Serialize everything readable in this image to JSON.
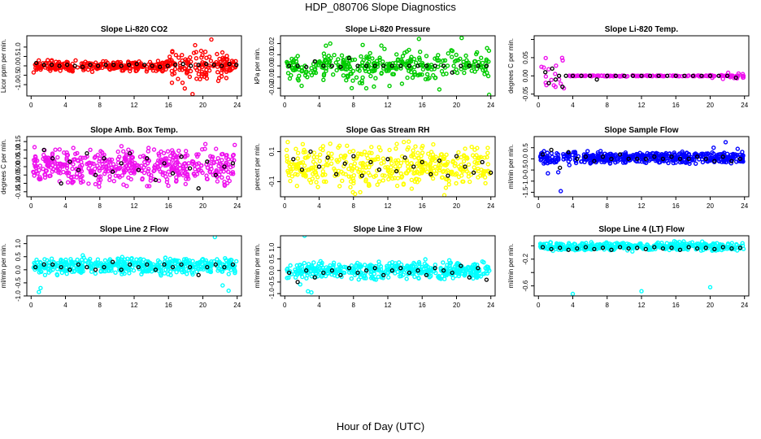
{
  "page": {
    "title": "HDP_080706  Slope Diagnostics",
    "xlabel": "Hour of Day (UTC)"
  },
  "chart_data": [
    {
      "type": "scatter",
      "title": "Slope Li-820 CO2",
      "ylabel": "Licor ppm per min.",
      "color": "#ff0000",
      "xlim": [
        -0.5,
        24.5
      ],
      "ylim": [
        -1.6,
        1.6
      ],
      "xticks": [
        0,
        4,
        8,
        12,
        16,
        20,
        24
      ],
      "yticks": [
        -1.0,
        -0.5,
        0.0,
        0.5,
        1.0
      ],
      "ytick_labels": [
        "-1.0",
        "-0.5",
        "0.0",
        "0.5",
        "1.0"
      ],
      "sigma": 0.14,
      "n": 380,
      "outliers": [
        [
          16.4,
          -0.9
        ],
        [
          17.9,
          -1.2
        ],
        [
          19.1,
          1.1
        ],
        [
          21.0,
          1.4
        ],
        [
          18.8,
          -1.5
        ],
        [
          21.8,
          -0.8
        ],
        [
          0.3,
          -0.35
        ],
        [
          20.3,
          0.75
        ]
      ],
      "black_pts": [
        [
          0.6,
          0.15
        ],
        [
          1.5,
          0.05
        ],
        [
          2.4,
          0.05
        ],
        [
          3.3,
          0.0
        ],
        [
          4.2,
          0.05
        ],
        [
          5.1,
          0.0
        ],
        [
          6.0,
          -0.05
        ],
        [
          6.9,
          0.05
        ],
        [
          7.8,
          0.0
        ],
        [
          8.7,
          0.05
        ],
        [
          9.6,
          0.05
        ],
        [
          10.5,
          0.0
        ],
        [
          11.4,
          0.05
        ],
        [
          12.3,
          0.1
        ],
        [
          13.2,
          0.05
        ],
        [
          14.1,
          0.0
        ],
        [
          15.0,
          -0.05
        ],
        [
          15.9,
          0.0
        ],
        [
          16.8,
          0.05
        ],
        [
          17.7,
          0.1
        ],
        [
          18.6,
          0.0
        ],
        [
          19.5,
          0.05
        ],
        [
          20.4,
          0.1
        ],
        [
          21.3,
          0.05
        ],
        [
          22.2,
          0.0
        ],
        [
          23.1,
          0.1
        ],
        [
          23.9,
          0.05
        ]
      ]
    },
    {
      "type": "scatter",
      "title": "Slope Li-820 Pressure",
      "ylabel": "kPa per min.",
      "color": "#00cc00",
      "xlim": [
        -0.5,
        24.5
      ],
      "ylim": [
        -0.027,
        0.027
      ],
      "xticks": [
        0,
        4,
        8,
        12,
        16,
        20,
        24
      ],
      "yticks": [
        -0.02,
        -0.01,
        0.0,
        0.01,
        0.02
      ],
      "ytick_labels": [
        "-0.02",
        "-0.01",
        "0.00",
        "0.01",
        "0.02"
      ],
      "sigma": 0.006,
      "n": 340,
      "outliers": [
        [
          7.8,
          -0.02
        ],
        [
          5.3,
          0.02
        ],
        [
          12.2,
          -0.018
        ],
        [
          16.4,
          -0.012
        ],
        [
          20.6,
          0.025
        ],
        [
          23.8,
          -0.026
        ],
        [
          1.6,
          -0.013
        ],
        [
          19.4,
          0.014
        ]
      ],
      "black_pts": [
        [
          0.5,
          0.0
        ],
        [
          1.5,
          0.0
        ],
        [
          2.5,
          -0.001
        ],
        [
          3.5,
          0.004
        ],
        [
          4.5,
          0.0
        ],
        [
          5.5,
          0.0
        ],
        [
          6.5,
          -0.001
        ],
        [
          7.5,
          0.007
        ],
        [
          8.5,
          0.0
        ],
        [
          9.5,
          0.0
        ],
        [
          10.5,
          0.0
        ],
        [
          11.5,
          0.0
        ],
        [
          12.5,
          0.0
        ],
        [
          13.5,
          0.0
        ],
        [
          14.5,
          0.0
        ],
        [
          15.5,
          0.0
        ],
        [
          16.5,
          0.0
        ],
        [
          17.5,
          0.0
        ],
        [
          18.5,
          0.0
        ],
        [
          19.5,
          -0.006
        ],
        [
          20.5,
          0.0
        ],
        [
          21.5,
          0.0
        ],
        [
          22.5,
          0.0
        ],
        [
          23.5,
          0.0
        ]
      ]
    },
    {
      "type": "scatter",
      "title": "Slope Li-820 Temp.",
      "ylabel": "degrees C per min.",
      "color": "#ee11ee",
      "xlim": [
        -0.5,
        24.5
      ],
      "ylim": [
        -0.055,
        0.11
      ],
      "xticks": [
        0,
        4,
        8,
        12,
        16,
        20,
        24
      ],
      "yticks": [
        -0.05,
        0.0,
        0.05,
        0.1
      ],
      "ytick_labels": [
        "-0.05",
        "0.00",
        "0.05",
        ""
      ],
      "sigma": 0.002,
      "n": 200,
      "outliers": [],
      "black_pts": [
        [
          0.8,
          0.01
        ],
        [
          1.2,
          -0.02
        ],
        [
          1.6,
          0.02
        ],
        [
          2.0,
          -0.01
        ],
        [
          2.4,
          0.0
        ],
        [
          2.8,
          -0.03
        ],
        [
          3.2,
          0.0
        ],
        [
          4.0,
          0.0
        ],
        [
          5.0,
          0.0
        ],
        [
          6.0,
          0.0
        ],
        [
          6.8,
          -0.01
        ],
        [
          8.0,
          0.0
        ],
        [
          9.0,
          0.0
        ],
        [
          10.0,
          0.0
        ],
        [
          11.0,
          0.0
        ],
        [
          12.0,
          0.0
        ],
        [
          13.0,
          0.0
        ],
        [
          14.0,
          0.0
        ],
        [
          15.0,
          0.0
        ],
        [
          16.0,
          0.0
        ],
        [
          17.0,
          0.0
        ],
        [
          18.0,
          0.0
        ],
        [
          19.0,
          0.0
        ],
        [
          20.0,
          0.0
        ],
        [
          21.0,
          0.0
        ],
        [
          22.0,
          0.0
        ],
        [
          23.0,
          -0.005
        ]
      ]
    },
    {
      "type": "scatter",
      "title": "Slope Amb. Box Temp.",
      "ylabel": "degrees C per min.",
      "color": "#ee11ee",
      "xlim": [
        -0.5,
        24.5
      ],
      "ylim": [
        -0.18,
        0.18
      ],
      "xticks": [
        0,
        4,
        8,
        12,
        16,
        20,
        24
      ],
      "yticks": [
        -0.15,
        -0.1,
        -0.05,
        0.0,
        0.05,
        0.1,
        0.15
      ],
      "ytick_labels": [
        "-0.15",
        "-0.10",
        "-0.05",
        "0.00",
        "0.05",
        "0.10",
        "0.15"
      ],
      "sigma": 0.05,
      "n": 480,
      "outliers": [],
      "black_pts": [
        [
          1.5,
          0.1
        ],
        [
          2.5,
          0.05
        ],
        [
          3.5,
          -0.1
        ],
        [
          4.5,
          0.03
        ],
        [
          5.5,
          -0.02
        ],
        [
          6.5,
          0.08
        ],
        [
          7.5,
          -0.05
        ],
        [
          8.5,
          0.05
        ],
        [
          9.5,
          -0.03
        ],
        [
          10.5,
          0.02
        ],
        [
          11.5,
          0.08
        ],
        [
          12.5,
          -0.02
        ],
        [
          13.5,
          0.05
        ],
        [
          14.5,
          -0.08
        ],
        [
          15.5,
          0.02
        ],
        [
          16.5,
          -0.04
        ],
        [
          17.5,
          0.06
        ],
        [
          18.5,
          -0.01
        ],
        [
          19.5,
          -0.13
        ],
        [
          20.5,
          0.03
        ],
        [
          21.5,
          -0.05
        ],
        [
          22.5,
          0.0
        ],
        [
          23.5,
          0.02
        ]
      ]
    },
    {
      "type": "scatter",
      "title": "Slope Gas Stream RH",
      "ylabel": "percent per min.",
      "color": "#ffff00",
      "xlim": [
        -0.5,
        24.5
      ],
      "ylim": [
        -0.2,
        0.2
      ],
      "xticks": [
        0,
        4,
        8,
        12,
        16,
        20,
        24
      ],
      "yticks": [
        -0.1,
        0.1
      ],
      "ytick_labels": [
        "-0.1",
        "0.1"
      ],
      "sigma": 0.07,
      "n": 430,
      "outliers": [],
      "black_pts": [
        [
          1.0,
          0.05
        ],
        [
          2.0,
          -0.02
        ],
        [
          3.0,
          0.1
        ],
        [
          4.0,
          0.0
        ],
        [
          5.0,
          0.06
        ],
        [
          6.0,
          -0.05
        ],
        [
          7.0,
          0.02
        ],
        [
          8.0,
          0.07
        ],
        [
          9.0,
          -0.06
        ],
        [
          10.0,
          0.03
        ],
        [
          11.0,
          -0.02
        ],
        [
          12.0,
          0.05
        ],
        [
          13.0,
          -0.03
        ],
        [
          14.0,
          0.06
        ],
        [
          15.0,
          0.0
        ],
        [
          16.0,
          0.03
        ],
        [
          17.0,
          -0.05
        ],
        [
          18.0,
          0.04
        ],
        [
          19.0,
          -0.06
        ],
        [
          20.0,
          0.07
        ],
        [
          21.0,
          0.0
        ],
        [
          22.0,
          -0.04
        ],
        [
          23.0,
          0.03
        ],
        [
          24.0,
          -0.04
        ]
      ]
    },
    {
      "type": "scatter",
      "title": "Slope Sample Flow",
      "ylabel": "ml/min per min.",
      "color": "#0000ff",
      "xlim": [
        -0.5,
        24.5
      ],
      "ylim": [
        -1.7,
        1.0
      ],
      "xticks": [
        0,
        4,
        8,
        12,
        16,
        20,
        24
      ],
      "yticks": [
        -1.5,
        -1.0,
        -0.5,
        0.0,
        0.5
      ],
      "ytick_labels": [
        "-1.5",
        "-1.0",
        "-0.5",
        "0.0",
        "0.5"
      ],
      "sigma": 0.12,
      "n": 470,
      "outliers": [
        [
          2.6,
          -1.45
        ],
        [
          1.1,
          -0.65
        ],
        [
          2.3,
          -0.6
        ],
        [
          21.8,
          0.75
        ],
        [
          20.4,
          0.5
        ],
        [
          23.2,
          0.45
        ]
      ],
      "black_pts": [
        [
          0.5,
          0.2
        ],
        [
          1.5,
          0.4
        ],
        [
          2.5,
          -0.4
        ],
        [
          3.5,
          0.3
        ],
        [
          4.5,
          0.0
        ],
        [
          5.5,
          0.1
        ],
        [
          6.5,
          -0.1
        ],
        [
          7.5,
          0.1
        ],
        [
          8.5,
          0.0
        ],
        [
          9.5,
          0.2
        ],
        [
          10.5,
          0.0
        ],
        [
          11.5,
          0.0
        ],
        [
          12.5,
          0.0
        ],
        [
          13.5,
          0.1
        ],
        [
          14.5,
          0.0
        ],
        [
          15.5,
          0.1
        ],
        [
          16.5,
          0.0
        ],
        [
          17.5,
          0.0
        ],
        [
          18.5,
          0.1
        ],
        [
          19.5,
          0.0
        ],
        [
          20.5,
          -0.1
        ],
        [
          21.5,
          0.1
        ],
        [
          22.5,
          -0.1
        ],
        [
          23.5,
          0.0
        ]
      ]
    },
    {
      "type": "scatter",
      "title": "Slope Line 2 Flow",
      "ylabel": "ml/min per min.",
      "color": "#00ffff",
      "xlim": [
        -0.5,
        24.5
      ],
      "ylim": [
        -1.0,
        1.3
      ],
      "xticks": [
        0,
        4,
        8,
        12,
        16,
        20,
        24
      ],
      "yticks": [
        -1.0,
        -0.5,
        0.0,
        0.5,
        1.0
      ],
      "ytick_labels": [
        "-1.0",
        "-0.5",
        "0.0",
        "0.5",
        "1.0"
      ],
      "sigma": 0.15,
      "n": 480,
      "outliers": [
        [
          1.1,
          -0.7
        ],
        [
          0.9,
          -0.85
        ],
        [
          22.3,
          -0.6
        ],
        [
          23.0,
          -0.8
        ],
        [
          21.4,
          1.25
        ]
      ],
      "black_pts": [
        [
          0.5,
          0.1
        ],
        [
          1.5,
          0.2
        ],
        [
          2.5,
          0.2
        ],
        [
          3.5,
          0.1
        ],
        [
          4.5,
          0.0
        ],
        [
          5.5,
          0.2
        ],
        [
          6.5,
          0.1
        ],
        [
          7.5,
          0.0
        ],
        [
          8.5,
          0.1
        ],
        [
          9.5,
          0.3
        ],
        [
          10.5,
          0.0
        ],
        [
          11.5,
          0.2
        ],
        [
          12.5,
          0.1
        ],
        [
          13.5,
          0.2
        ],
        [
          14.5,
          0.0
        ],
        [
          15.5,
          0.2
        ],
        [
          16.5,
          0.1
        ],
        [
          17.5,
          0.2
        ],
        [
          18.5,
          0.1
        ],
        [
          19.5,
          -0.2
        ],
        [
          20.5,
          0.1
        ],
        [
          21.5,
          0.2
        ],
        [
          22.5,
          0.1
        ],
        [
          23.5,
          0.2
        ]
      ]
    },
    {
      "type": "scatter",
      "title": "Slope Line 3 Flow",
      "ylabel": "ml/min per min.",
      "color": "#00ffff",
      "xlim": [
        -0.5,
        24.5
      ],
      "ylim": [
        -1.1,
        1.5
      ],
      "xticks": [
        0,
        4,
        8,
        12,
        16,
        20,
        24
      ],
      "yticks": [
        -1.0,
        -0.5,
        0.0,
        0.5,
        1.0
      ],
      "ytick_labels": [
        "-1.0",
        "-0.5",
        "0.0",
        "0.5",
        "1.0"
      ],
      "sigma": 0.17,
      "n": 450,
      "outliers": [
        [
          2.3,
          1.5
        ],
        [
          2.7,
          -0.9
        ],
        [
          3.1,
          -0.95
        ],
        [
          1.8,
          -0.6
        ]
      ],
      "black_pts": [
        [
          0.5,
          -0.1
        ],
        [
          1.5,
          -0.5
        ],
        [
          2.5,
          0.0
        ],
        [
          3.5,
          -0.3
        ],
        [
          4.5,
          -0.1
        ],
        [
          5.5,
          0.0
        ],
        [
          6.5,
          -0.2
        ],
        [
          7.5,
          0.1
        ],
        [
          8.5,
          -0.1
        ],
        [
          9.5,
          0.0
        ],
        [
          10.5,
          0.1
        ],
        [
          11.5,
          -0.2
        ],
        [
          12.5,
          0.0
        ],
        [
          13.5,
          0.1
        ],
        [
          14.5,
          -0.1
        ],
        [
          15.5,
          0.0
        ],
        [
          16.5,
          -0.2
        ],
        [
          17.5,
          0.1
        ],
        [
          18.5,
          0.0
        ],
        [
          19.5,
          -0.1
        ],
        [
          20.5,
          0.2
        ],
        [
          21.5,
          -0.3
        ],
        [
          22.5,
          0.1
        ],
        [
          23.5,
          -0.4
        ]
      ]
    },
    {
      "type": "scatter",
      "title": "Slope Line 4 (LT) Flow",
      "ylabel": "ml/min per min.",
      "color": "#00ffff",
      "xlim": [
        -0.5,
        24.5
      ],
      "ylim": [
        -0.75,
        0.15
      ],
      "xticks": [
        0,
        4,
        8,
        12,
        16,
        20,
        24
      ],
      "yticks": [
        -0.6,
        -0.4,
        -0.2,
        0.0
      ],
      "ytick_labels": [
        "-0.6",
        "",
        "-0.2",
        ""
      ],
      "sigma": 0.03,
      "n": 420,
      "outliers": [
        [
          4.0,
          -0.72
        ],
        [
          12.0,
          -0.68
        ],
        [
          20.0,
          -0.62
        ]
      ],
      "black_pts": [
        [
          0.5,
          -0.02
        ],
        [
          1.5,
          -0.05
        ],
        [
          2.5,
          -0.03
        ],
        [
          3.5,
          -0.06
        ],
        [
          4.5,
          -0.04
        ],
        [
          5.5,
          -0.02
        ],
        [
          6.5,
          -0.05
        ],
        [
          7.5,
          -0.03
        ],
        [
          8.5,
          -0.06
        ],
        [
          9.5,
          -0.02
        ],
        [
          10.5,
          -0.04
        ],
        [
          11.5,
          -0.03
        ],
        [
          12.5,
          -0.05
        ],
        [
          13.5,
          -0.02
        ],
        [
          14.5,
          -0.04
        ],
        [
          15.5,
          -0.03
        ],
        [
          16.5,
          -0.06
        ],
        [
          17.5,
          -0.02
        ],
        [
          18.5,
          -0.04
        ],
        [
          19.5,
          -0.03
        ],
        [
          20.5,
          -0.05
        ],
        [
          21.5,
          -0.02
        ],
        [
          22.5,
          -0.04
        ],
        [
          23.5,
          -0.03
        ]
      ]
    }
  ]
}
